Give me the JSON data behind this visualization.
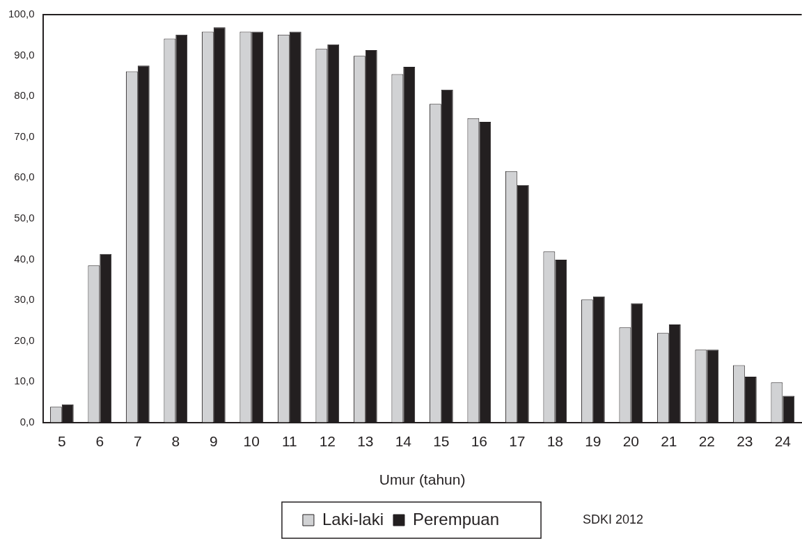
{
  "chart_data": {
    "type": "bar",
    "xlabel": "Umur (tahun)",
    "categories": [
      "5",
      "6",
      "7",
      "8",
      "9",
      "10",
      "11",
      "12",
      "13",
      "14",
      "15",
      "16",
      "17",
      "18",
      "19",
      "20",
      "21",
      "22",
      "23",
      "24"
    ],
    "series": [
      {
        "name": "Laki-laki",
        "color": "#d1d2d4",
        "values": [
          3.8,
          38.5,
          86.1,
          94.1,
          95.8,
          95.8,
          95.1,
          91.6,
          89.9,
          85.4,
          78.1,
          74.6,
          61.6,
          41.9,
          30.1,
          23.3,
          21.9,
          17.8,
          14.0,
          9.8
        ]
      },
      {
        "name": "Perempuan",
        "color": "#231f20",
        "values": [
          4.4,
          41.3,
          87.5,
          95.1,
          96.9,
          95.8,
          95.8,
          92.7,
          91.3,
          87.2,
          81.6,
          73.7,
          58.2,
          39.9,
          30.9,
          29.2,
          24.0,
          17.8,
          11.2,
          6.5
        ]
      }
    ],
    "ylim": [
      0,
      100
    ],
    "yticks": [
      {
        "value": 0,
        "label": "0,0"
      },
      {
        "value": 10,
        "label": "10,0"
      },
      {
        "value": 20,
        "label": "20,0"
      },
      {
        "value": 30,
        "label": "30,0"
      },
      {
        "value": 40,
        "label": "40,0"
      },
      {
        "value": 50,
        "label": "50,0"
      },
      {
        "value": 60,
        "label": "60,0"
      },
      {
        "value": 70,
        "label": "70,0"
      },
      {
        "value": 80,
        "label": "80,0"
      },
      {
        "value": 90,
        "label": "90,0"
      },
      {
        "value": 100,
        "label": "100,0"
      }
    ],
    "grid": false,
    "legend": "bottom",
    "annotations": [
      "SDKI 2012"
    ]
  }
}
